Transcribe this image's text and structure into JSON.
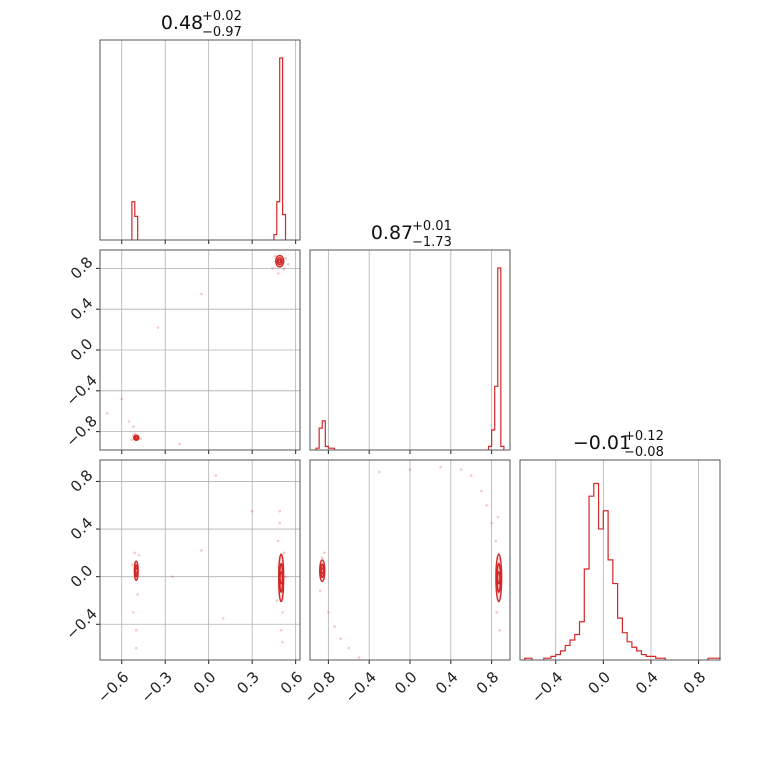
{
  "chart_data": {
    "type": "corner",
    "color": "#d62728",
    "grid": true,
    "parameters": [
      {
        "range": [
          -0.75,
          0.63
        ],
        "ticks": [
          -0.6,
          -0.3,
          0.0,
          0.3,
          0.6
        ],
        "tick_labels": [
          "−0.6",
          "−0.3",
          "0.0",
          "0.3",
          "0.6"
        ]
      },
      {
        "range": [
          -0.98,
          0.98
        ],
        "ticks": [
          -0.8,
          -0.4,
          0.0,
          0.4,
          0.8
        ],
        "tick_labels": [
          "−0.8",
          "−0.4",
          "0.0",
          "0.4",
          "0.8"
        ]
      },
      {
        "range": [
          -0.7,
          0.98
        ],
        "ticks": [
          -0.4,
          0.0,
          0.4,
          0.8
        ],
        "tick_labels": [
          "−0.4",
          "0.0",
          "0.4",
          "0.8"
        ]
      }
    ],
    "titles": [
      {
        "value": "0.48",
        "plus": "+0.02",
        "minus": "−0.97"
      },
      {
        "value": "0.87",
        "plus": "+0.01",
        "minus": "−1.73"
      },
      {
        "value": "−0.01",
        "plus": "+0.12",
        "minus": "−0.08"
      }
    ],
    "histograms": [
      {
        "bins": [
          {
            "x0": -0.53,
            "x1": -0.51,
            "h": 0.21
          },
          {
            "x0": -0.51,
            "x1": -0.49,
            "h": 0.13
          },
          {
            "x0": 0.45,
            "x1": 0.47,
            "h": 0.03
          },
          {
            "x0": 0.47,
            "x1": 0.49,
            "h": 0.21
          },
          {
            "x0": 0.49,
            "x1": 0.51,
            "h": 1.0
          },
          {
            "x0": 0.51,
            "x1": 0.53,
            "h": 0.14
          }
        ]
      },
      {
        "bins": [
          {
            "x0": -0.92,
            "x1": -0.89,
            "h": 0.01
          },
          {
            "x0": -0.89,
            "x1": -0.86,
            "h": 0.12
          },
          {
            "x0": -0.86,
            "x1": -0.83,
            "h": 0.16
          },
          {
            "x0": -0.83,
            "x1": -0.8,
            "h": 0.02
          },
          {
            "x0": -0.8,
            "x1": -0.74,
            "h": 0.01
          },
          {
            "x0": 0.77,
            "x1": 0.8,
            "h": 0.02
          },
          {
            "x0": 0.8,
            "x1": 0.83,
            "h": 0.11
          },
          {
            "x0": 0.83,
            "x1": 0.86,
            "h": 0.35
          },
          {
            "x0": 0.86,
            "x1": 0.89,
            "h": 1.0
          },
          {
            "x0": 0.89,
            "x1": 0.92,
            "h": 0.02
          }
        ]
      },
      {
        "bins": [
          {
            "x0": -0.66,
            "x1": -0.6,
            "h": 0.01
          },
          {
            "x0": -0.5,
            "x1": -0.44,
            "h": 0.01
          },
          {
            "x0": -0.44,
            "x1": -0.4,
            "h": 0.02
          },
          {
            "x0": -0.4,
            "x1": -0.36,
            "h": 0.03
          },
          {
            "x0": -0.36,
            "x1": -0.32,
            "h": 0.05
          },
          {
            "x0": -0.32,
            "x1": -0.28,
            "h": 0.08
          },
          {
            "x0": -0.28,
            "x1": -0.24,
            "h": 0.11
          },
          {
            "x0": -0.24,
            "x1": -0.2,
            "h": 0.14
          },
          {
            "x0": -0.2,
            "x1": -0.16,
            "h": 0.21
          },
          {
            "x0": -0.16,
            "x1": -0.12,
            "h": 0.5
          },
          {
            "x0": -0.12,
            "x1": -0.08,
            "h": 0.9
          },
          {
            "x0": -0.08,
            "x1": -0.04,
            "h": 0.97
          },
          {
            "x0": -0.04,
            "x1": 0.0,
            "h": 0.72
          },
          {
            "x0": 0.0,
            "x1": 0.04,
            "h": 0.82
          },
          {
            "x0": 0.04,
            "x1": 0.08,
            "h": 0.55
          },
          {
            "x0": 0.08,
            "x1": 0.12,
            "h": 0.42
          },
          {
            "x0": 0.12,
            "x1": 0.16,
            "h": 0.23
          },
          {
            "x0": 0.16,
            "x1": 0.2,
            "h": 0.15
          },
          {
            "x0": 0.2,
            "x1": 0.24,
            "h": 0.1
          },
          {
            "x0": 0.24,
            "x1": 0.28,
            "h": 0.07
          },
          {
            "x0": 0.28,
            "x1": 0.32,
            "h": 0.05
          },
          {
            "x0": 0.32,
            "x1": 0.36,
            "h": 0.03
          },
          {
            "x0": 0.36,
            "x1": 0.44,
            "h": 0.02
          },
          {
            "x0": 0.44,
            "x1": 0.52,
            "h": 0.01
          },
          {
            "x0": 0.88,
            "x1": 0.98,
            "h": 0.01
          }
        ]
      }
    ],
    "pairs": [
      {
        "x_param": 0,
        "y_param": 1,
        "modes": [
          {
            "cx": 0.49,
            "cy": 0.87,
            "rx": 0.028,
            "ry": 0.055
          },
          {
            "cx": -0.5,
            "cy": -0.86,
            "rx": 0.018,
            "ry": 0.025
          }
        ],
        "scatter": [
          [
            -0.52,
            -0.84
          ],
          [
            -0.49,
            -0.85
          ],
          [
            -0.51,
            -0.82
          ],
          [
            -0.47,
            -0.87
          ],
          [
            -0.53,
            -0.88
          ],
          [
            -0.52,
            -0.75
          ],
          [
            -0.55,
            -0.7
          ],
          [
            -0.6,
            -0.48
          ],
          [
            -0.35,
            0.22
          ],
          [
            -0.05,
            0.55
          ],
          [
            0.44,
            0.8
          ],
          [
            0.46,
            0.92
          ],
          [
            0.52,
            0.79
          ],
          [
            0.55,
            0.84
          ],
          [
            0.53,
            0.9
          ],
          [
            0.48,
            0.75
          ],
          [
            -0.7,
            -0.62
          ],
          [
            -0.2,
            -0.92
          ]
        ]
      },
      {
        "x_param": 0,
        "y_param": 2,
        "modes": [
          {
            "cx": -0.5,
            "cy": 0.05,
            "rx": 0.013,
            "ry": 0.08
          },
          {
            "cx": 0.5,
            "cy": -0.01,
            "rx": 0.017,
            "ry": 0.2
          }
        ],
        "scatter": [
          [
            -0.51,
            0.2
          ],
          [
            -0.49,
            -0.15
          ],
          [
            -0.52,
            -0.3
          ],
          [
            -0.5,
            -0.45
          ],
          [
            -0.48,
            0.18
          ],
          [
            -0.53,
            0.1
          ],
          [
            -0.5,
            -0.6
          ],
          [
            0.48,
            0.3
          ],
          [
            0.49,
            0.45
          ],
          [
            0.51,
            -0.3
          ],
          [
            0.5,
            -0.45
          ],
          [
            0.52,
            0.2
          ],
          [
            0.47,
            -0.2
          ],
          [
            0.53,
            0.0
          ],
          [
            0.49,
            0.55
          ],
          [
            0.51,
            -0.55
          ],
          [
            -0.25,
            0.0
          ],
          [
            -0.05,
            0.22
          ],
          [
            0.1,
            -0.35
          ],
          [
            0.3,
            0.55
          ],
          [
            0.05,
            0.85
          ]
        ]
      },
      {
        "x_param": 1,
        "y_param": 2,
        "modes": [
          {
            "cx": -0.86,
            "cy": 0.05,
            "rx": 0.025,
            "ry": 0.09
          },
          {
            "cx": 0.87,
            "cy": -0.01,
            "rx": 0.028,
            "ry": 0.2
          }
        ],
        "scatter": [
          [
            -0.84,
            0.2
          ],
          [
            -0.88,
            -0.12
          ],
          [
            -0.8,
            -0.3
          ],
          [
            -0.74,
            -0.42
          ],
          [
            -0.68,
            -0.52
          ],
          [
            -0.6,
            -0.6
          ],
          [
            -0.5,
            -0.68
          ],
          [
            -0.86,
            0.16
          ],
          [
            0.84,
            0.3
          ],
          [
            0.8,
            0.45
          ],
          [
            0.75,
            0.6
          ],
          [
            0.7,
            0.72
          ],
          [
            0.6,
            0.85
          ],
          [
            0.85,
            -0.3
          ],
          [
            0.88,
            -0.45
          ],
          [
            0.86,
            0.5
          ],
          [
            0.88,
            0.15
          ],
          [
            -0.3,
            0.88
          ],
          [
            0.0,
            0.9
          ],
          [
            0.3,
            0.92
          ],
          [
            0.5,
            0.9
          ]
        ]
      }
    ]
  }
}
